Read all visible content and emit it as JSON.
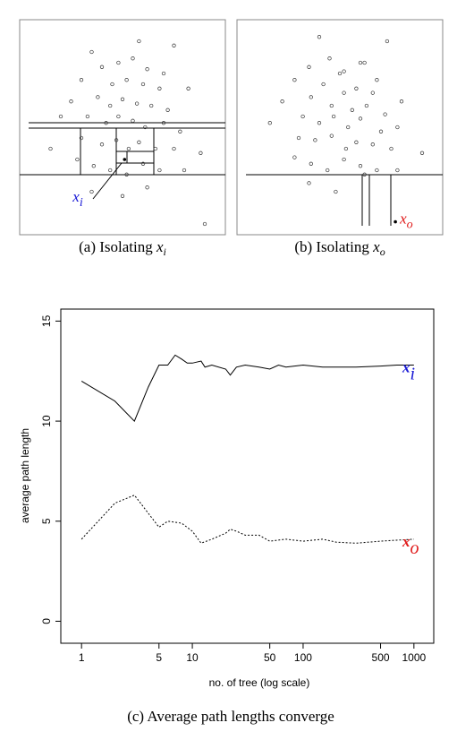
{
  "chart_data": [
    {
      "type": "scatter",
      "caption": "(a) Isolating",
      "xlim": [
        0,
        100
      ],
      "ylim": [
        0,
        100
      ],
      "x": [
        35,
        58,
        75,
        40,
        48,
        55,
        62,
        70,
        30,
        45,
        52,
        60,
        68,
        82,
        25,
        38,
        44,
        50,
        57,
        64,
        72,
        20,
        33,
        42,
        48,
        55,
        61,
        70,
        78,
        15,
        30,
        40,
        47,
        53,
        58,
        66,
        75,
        88,
        28,
        36,
        44,
        52,
        60,
        68,
        80,
        35,
        50,
        62,
        90
      ],
      "y": [
        85,
        90,
        88,
        78,
        80,
        82,
        77,
        75,
        72,
        70,
        72,
        70,
        68,
        68,
        62,
        64,
        60,
        63,
        61,
        60,
        58,
        55,
        55,
        52,
        55,
        53,
        50,
        52,
        48,
        40,
        45,
        42,
        44,
        40,
        43,
        40,
        40,
        38,
        35,
        32,
        30,
        28,
        33,
        30,
        30,
        20,
        18,
        22,
        5
      ],
      "target": {
        "x": 51,
        "y": 35
      },
      "annotation": {
        "text": "x",
        "subscript": "i",
        "color": "#1a1ad6"
      }
    },
    {
      "type": "scatter",
      "caption": "(b) Isolating",
      "xlim": [
        0,
        100
      ],
      "ylim": [
        0,
        100
      ],
      "x": [
        40,
        60,
        73,
        35,
        45,
        52,
        62,
        68,
        28,
        42,
        50,
        58,
        66,
        80,
        22,
        36,
        46,
        52,
        56,
        63,
        72,
        16,
        32,
        40,
        47,
        54,
        60,
        70,
        78,
        30,
        38,
        46,
        53,
        58,
        66,
        75,
        90,
        28,
        36,
        44,
        52,
        60,
        68,
        78,
        35,
        48,
        62
      ],
      "y": [
        92,
        80,
        90,
        78,
        82,
        76,
        80,
        72,
        72,
        70,
        75,
        68,
        66,
        62,
        62,
        64,
        60,
        66,
        58,
        60,
        56,
        52,
        55,
        52,
        55,
        50,
        54,
        48,
        50,
        45,
        44,
        46,
        40,
        43,
        42,
        40,
        38,
        36,
        33,
        30,
        35,
        32,
        30,
        30,
        24,
        20,
        28
      ],
      "target": {
        "x": 77,
        "y": 6
      },
      "annotation": {
        "text": "x",
        "subscript": "o",
        "color": "#e01b1b"
      }
    },
    {
      "type": "line",
      "caption": "(c) Average path lengths converge",
      "x_label": "no. of tree (log scale)",
      "y_label": "average path length",
      "xlog": true,
      "xlim": [
        0.65,
        1510
      ],
      "ylim": [
        -1.1,
        15.6
      ],
      "xticks": [
        1,
        5,
        10,
        50,
        100,
        500,
        1000
      ],
      "yticks": [
        0,
        5,
        10,
        15
      ],
      "series": [
        {
          "name": "x",
          "subscript": "i",
          "color": "#1a1ad6",
          "dash": false,
          "x": [
            1,
            2,
            3,
            4,
            5,
            6,
            7,
            8,
            9,
            10,
            12,
            13,
            15,
            20,
            22,
            25,
            30,
            40,
            50,
            60,
            70,
            100,
            150,
            200,
            300,
            500,
            700,
            1000
          ],
          "values": [
            12,
            11,
            10,
            11.7,
            12.8,
            12.8,
            13.3,
            13.1,
            12.9,
            12.9,
            13.0,
            12.7,
            12.8,
            12.6,
            12.3,
            12.7,
            12.8,
            12.7,
            12.6,
            12.8,
            12.7,
            12.8,
            12.7,
            12.7,
            12.7,
            12.75,
            12.8,
            12.8
          ]
        },
        {
          "name": "x",
          "subscript": "o",
          "color": "#e01b1b",
          "dash": true,
          "x": [
            1,
            2,
            3,
            4,
            5,
            6,
            8,
            10,
            12,
            15,
            20,
            22,
            25,
            30,
            40,
            50,
            70,
            100,
            150,
            200,
            300,
            500,
            700,
            1000
          ],
          "values": [
            4.1,
            5.9,
            6.3,
            5.4,
            4.7,
            5.0,
            4.9,
            4.5,
            3.9,
            4.1,
            4.4,
            4.6,
            4.5,
            4.3,
            4.3,
            4.0,
            4.1,
            4.0,
            4.1,
            3.95,
            3.9,
            4.0,
            4.05,
            4.1
          ]
        }
      ]
    }
  ]
}
